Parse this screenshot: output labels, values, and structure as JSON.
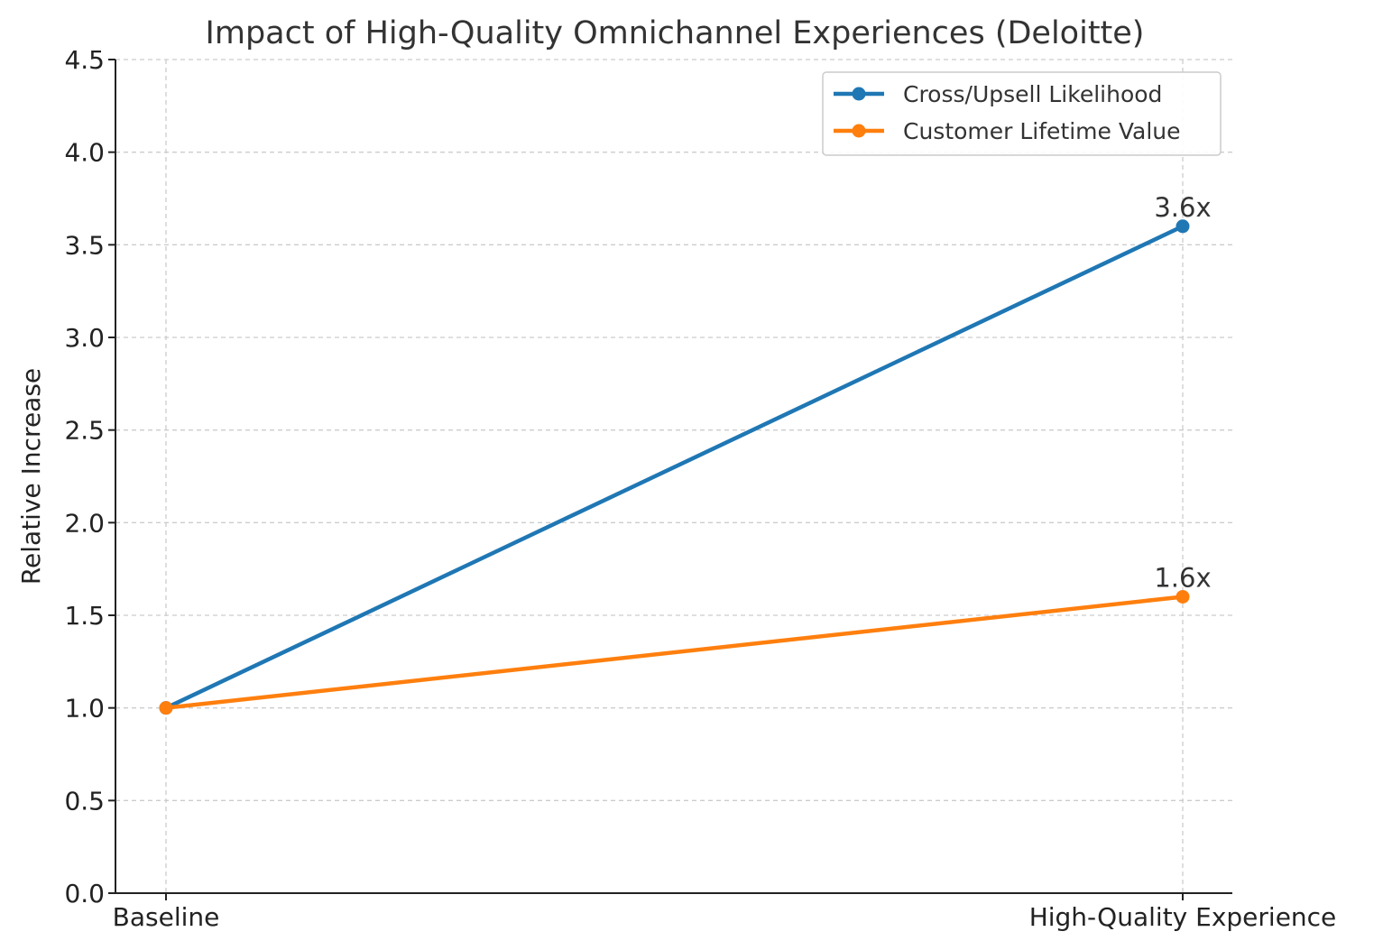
{
  "chart_data": {
    "type": "line",
    "title": "Impact of High-Quality Omnichannel Experiences (Deloitte)",
    "xlabel": "",
    "ylabel": "Relative Increase",
    "categories": [
      "Baseline",
      "High-Quality Experience"
    ],
    "ylim": [
      0,
      4.5
    ],
    "yticks": [
      "0.0",
      "0.5",
      "1.0",
      "1.5",
      "2.0",
      "2.5",
      "3.0",
      "3.5",
      "4.0",
      "4.5"
    ],
    "grid": true,
    "legend_position": "top-right",
    "series": [
      {
        "name": "Cross/Upsell Likelihood",
        "values": [
          1.0,
          3.6
        ],
        "color": "#1f77b4",
        "end_label": "3.6x"
      },
      {
        "name": "Customer Lifetime Value",
        "values": [
          1.0,
          1.6
        ],
        "color": "#ff7f0e",
        "end_label": "1.6x"
      }
    ]
  }
}
